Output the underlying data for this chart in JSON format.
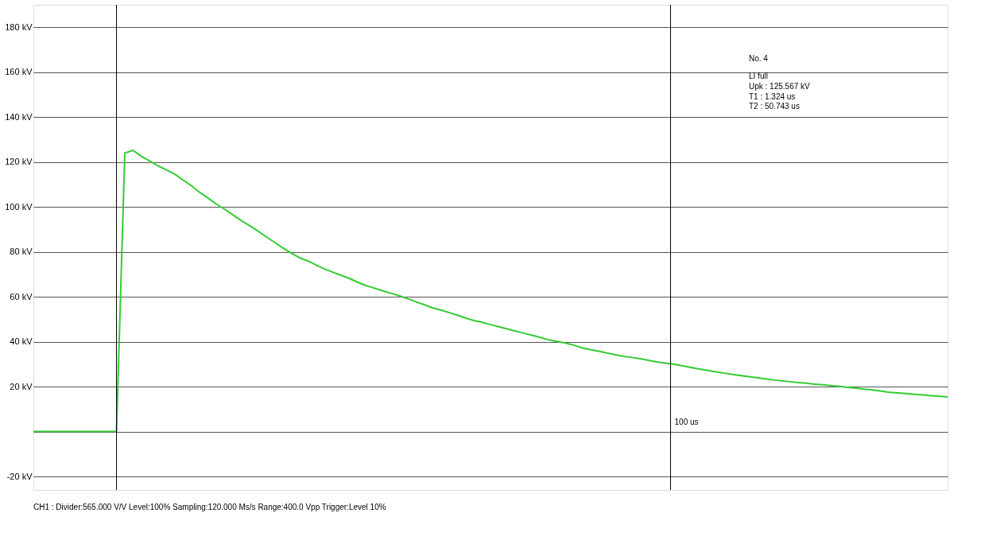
{
  "chart_data": {
    "type": "line",
    "categories": [
      null,
      null,
      null,
      null,
      null,
      null,
      null,
      null,
      null,
      null,
      null,
      null,
      null,
      null,
      null,
      null,
      null,
      null,
      null,
      null,
      null,
      null,
      null,
      null,
      null,
      null,
      null,
      null,
      null,
      null,
      null,
      null,
      null,
      null,
      null,
      null,
      null,
      null,
      null,
      null,
      null,
      null,
      null,
      null,
      null,
      null,
      null,
      null,
      null,
      null,
      null,
      null,
      null,
      null,
      null,
      null,
      null,
      null,
      null,
      null,
      null,
      null,
      null,
      null,
      null,
      null,
      null,
      null,
      null,
      null,
      null,
      null,
      null,
      null,
      null,
      null,
      null,
      null,
      null,
      null,
      null,
      null,
      null,
      null,
      null,
      null,
      null,
      null,
      null,
      null,
      null,
      null,
      null,
      null,
      null,
      null,
      null,
      null,
      null,
      null,
      null,
      null,
      null,
      null,
      null,
      null,
      null,
      null,
      null,
      null,
      null
    ],
    "series": [
      {
        "color": "#33cc33",
        "values": [
          0,
          0,
          0,
          0,
          0,
          0,
          0,
          0,
          0,
          0,
          0,
          124,
          125.2,
          122.5,
          120.5,
          118.3,
          116.5,
          114.6,
          112,
          109.5,
          106.5,
          104,
          101.3,
          99,
          96.5,
          94,
          91.7,
          89.3,
          86.7,
          84.3,
          81.8,
          79.5,
          77.4,
          76,
          74.2,
          72.4,
          71,
          69.6,
          68.2,
          66.5,
          65,
          63.9,
          62.7,
          61.6,
          60.5,
          59.2,
          57.8,
          56.5,
          55.1,
          54.1,
          53,
          51.8,
          50.6,
          49.4,
          48.6,
          47.6,
          46.7,
          45.7,
          44.7,
          43.8,
          42.9,
          41.9,
          40.8,
          40.1,
          39.4,
          38.5,
          37.3,
          36.5,
          35.8,
          35,
          34.2,
          33.5,
          33,
          32.4,
          31.7,
          31,
          30.5,
          30,
          29.3,
          28.6,
          27.9,
          27.3,
          26.7,
          26.1,
          25.5,
          25,
          24.5,
          24,
          23.5,
          23,
          22.6,
          22.2,
          21.8,
          21.5,
          21.1,
          20.8,
          20.4,
          20.1,
          19.7,
          19.3,
          18.9,
          18.5,
          18,
          17.5,
          17.2,
          16.9,
          16.6,
          16.3,
          16,
          15.7,
          15.4
        ]
      }
    ],
    "ylim": [
      -26,
      190
    ],
    "yticks": [
      {
        "value": -20,
        "label": "-20 kV"
      },
      {
        "value": 0,
        "label": null
      },
      {
        "value": 20,
        "label": "20 kV"
      },
      {
        "value": 40,
        "label": "40 kV"
      },
      {
        "value": 60,
        "label": "60 kV"
      },
      {
        "value": 80,
        "label": "80 kV"
      },
      {
        "value": 100,
        "label": "100 kV"
      },
      {
        "value": 120,
        "label": "120 kV"
      },
      {
        "value": 140,
        "label": "140 kV"
      },
      {
        "value": 160,
        "label": "160 kV"
      },
      {
        "value": 180,
        "label": "180 kV"
      }
    ],
    "grid": true,
    "marker": "none",
    "line_style": "solid",
    "annotations": [
      "No. 4",
      "LI full",
      "Upk        : 125.567 kV",
      "T1          : 1.324 us",
      "T2          : 50.743 us",
      "100 us",
      "CH1 : Divider:565.000 V/V  Level:100%  Sampling:120.000 Ms/s  Range:400.0 Vpp  Trigger:Level 10%"
    ]
  }
}
